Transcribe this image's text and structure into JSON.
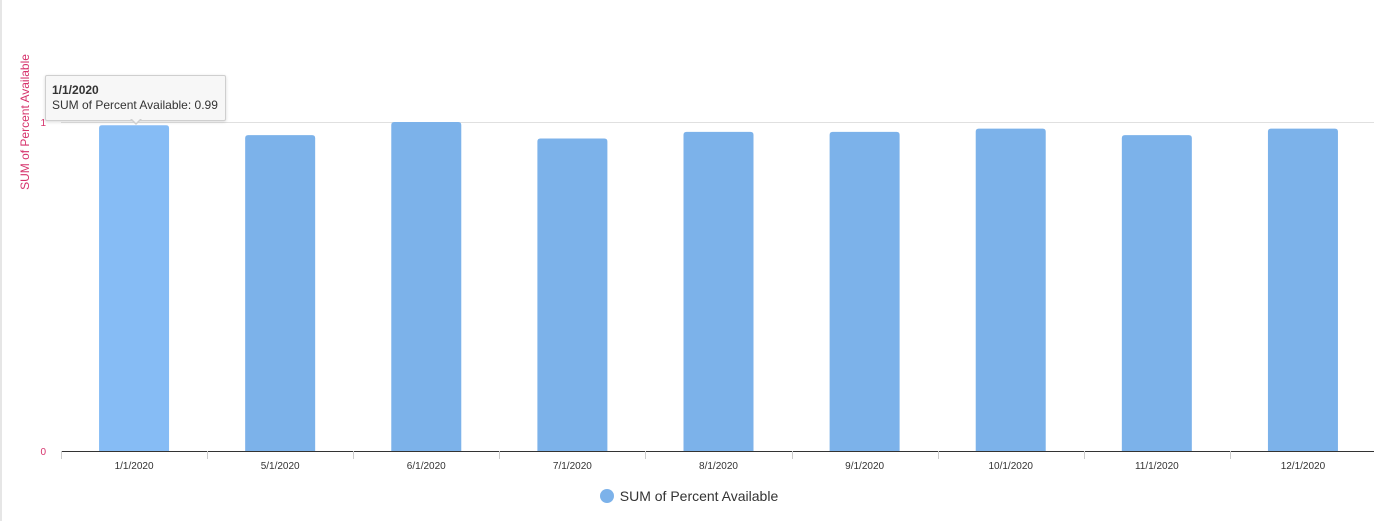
{
  "chart_data": {
    "type": "bar",
    "categories": [
      "1/1/2020",
      "5/1/2020",
      "6/1/2020",
      "7/1/2020",
      "8/1/2020",
      "9/1/2020",
      "10/1/2020",
      "11/1/2020",
      "12/1/2020"
    ],
    "series": [
      {
        "name": "SUM of Percent Available",
        "values": [
          0.99,
          0.96,
          1.0,
          0.95,
          0.97,
          0.97,
          0.98,
          0.96,
          0.98
        ]
      }
    ],
    "ylabel": "SUM of Percent Available",
    "xlabel": "",
    "ylim": [
      0,
      1
    ],
    "yticks": [
      "0",
      "1"
    ],
    "grid": true,
    "legend_position": "bottom-center",
    "colors": {
      "bar": "#7cb2ea",
      "bar_highlight": "#86bcf5",
      "axis_label": "#d6336c"
    }
  },
  "tooltip": {
    "title": "1/1/2020",
    "text": "SUM of Percent Available: 0.99",
    "category_index": 0
  }
}
